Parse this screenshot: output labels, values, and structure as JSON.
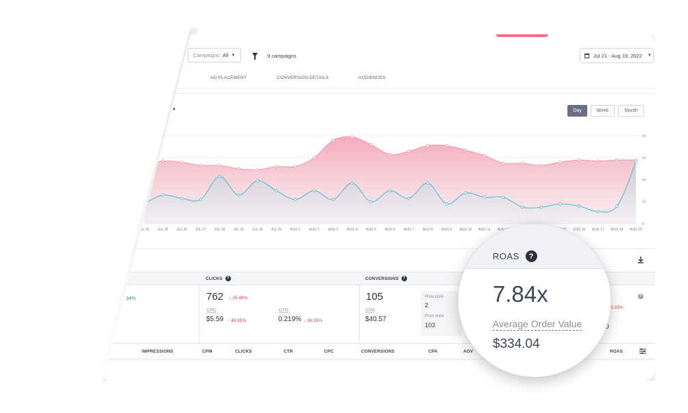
{
  "toolbar": {
    "campaigns_label": "Campaigns:",
    "campaigns_value": "All",
    "campaign_count": "9 campaigns",
    "date_range": "Jul 21 - Aug 19, 2022"
  },
  "tabs": [
    "AD PLACEMENT",
    "CONVERSION DETAILS",
    "AUDIENCES"
  ],
  "period_buttons": {
    "day": "Day",
    "week": "Week",
    "month": "Month",
    "active": "Day"
  },
  "chart_data": {
    "type": "area",
    "categories": [
      "JUL 24",
      "JUL 25",
      "JUL 26",
      "JUL 27",
      "JUL 28",
      "JUL 29",
      "JUL 30",
      "JUL 31",
      "AUG 1",
      "AUG 2",
      "AUG 3",
      "AUG 4",
      "AUG 5",
      "AUG 6",
      "AUG 7",
      "AUG 8",
      "AUG 9",
      "AUG 10",
      "AUG 11",
      "AUG 12",
      "AUG 13",
      "AUG 14",
      "AUG 15",
      "AUG 16",
      "AUG 17",
      "AUG 18",
      "AUG 19"
    ],
    "series": [
      {
        "values": [
          53,
          57,
          56,
          53,
          53,
          50,
          49,
          52,
          52,
          60,
          76,
          79,
          72,
          63,
          66,
          71,
          71,
          67,
          62,
          55,
          55,
          53,
          56,
          58,
          57,
          58,
          58
        ],
        "color": "#f4a7b7"
      },
      {
        "values": [
          18,
          26,
          23,
          22,
          43,
          26,
          39,
          30,
          22,
          30,
          22,
          37,
          20,
          30,
          23,
          37,
          18,
          28,
          24,
          24,
          15,
          15,
          18,
          16,
          11,
          16,
          56
        ],
        "color": "#5bc3cf"
      }
    ],
    "y_ticks": [
      "0",
      "20",
      "40",
      "60",
      "80"
    ],
    "ylim": [
      0,
      80
    ]
  },
  "kpis": {
    "left_delta": "34%",
    "clicks_label": "CLICKS",
    "clicks_value": "762",
    "clicks_delta": "35.48%",
    "cpc_label": "CPC",
    "cpc_value": "$5.59",
    "cpc_delta": "49.85%",
    "ctr_label": "CTR",
    "ctr_value": "0.219%",
    "ctr_delta": "36.35%",
    "conversions_label": "CONVERSIONS",
    "conversions_value": "105",
    "cpa_label": "CPA",
    "cpa_value": "$40.57",
    "post_click_label": "Post click",
    "post_click_value": "2",
    "post_view_label": "Post view",
    "post_view_value": "103",
    "right_delta": "3.33%",
    "right_value_fragment": "0"
  },
  "table_columns": [
    "IMPRESSIONS",
    "CPM",
    "CLICKS",
    "CTR",
    "CPC",
    "CONVERSIONS",
    "CPA",
    "AOV",
    "ROAS"
  ],
  "lens": {
    "title": "ROAS",
    "value": "7.84x",
    "aov_label": "Average Order Value",
    "aov_value": "$334.04"
  },
  "colors": {
    "accent": "#f26e8c",
    "line_teal": "#5bc3cf",
    "area_pink": "#f4a7b7",
    "dark": "#2d3140"
  }
}
